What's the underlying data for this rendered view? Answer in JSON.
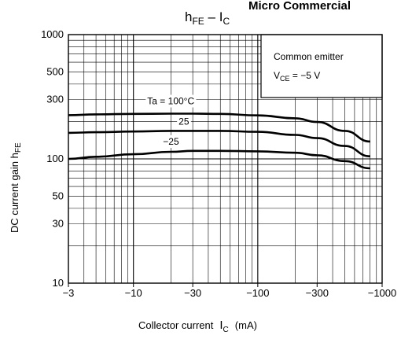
{
  "header": {
    "brand": "Micro Commercial"
  },
  "chart_data": {
    "type": "line",
    "title": {
      "main": "h",
      "main_sub": "FE",
      "sep": " – I",
      "tail_sub": "C"
    },
    "xlabel": {
      "text": "Collector current",
      "var": "I",
      "var_sub": "C",
      "unit": "(mA)"
    },
    "ylabel": {
      "text": "DC current gain",
      "var": "h",
      "var_sub": "FE"
    },
    "x_scale": "log",
    "y_scale": "log",
    "xlim": [
      -3,
      -1000
    ],
    "ylim": [
      10,
      1000
    ],
    "grid": true,
    "x_tick_values": [
      -3,
      -10,
      -30,
      -100,
      -300,
      -1000
    ],
    "x_tick_labels": [
      "−3",
      "−10",
      "−30",
      "−100",
      "−300",
      "−1000"
    ],
    "y_tick_values": [
      10,
      30,
      50,
      100,
      300,
      500,
      1000
    ],
    "y_tick_labels": [
      "10",
      "30",
      "50",
      "100",
      "300",
      "500",
      "1000"
    ],
    "legend_box": {
      "line1": "Common emitter",
      "line2_prefix": "V",
      "line2_sub": "CE",
      "line2_suffix": " = −5 V"
    },
    "series": [
      {
        "name": "Ta = 100°C",
        "x": [
          -3,
          -5,
          -10,
          -20,
          -30,
          -50,
          -100,
          -200,
          -300,
          -500,
          -800
        ],
        "y": [
          225,
          228,
          230,
          231,
          231,
          230,
          224,
          212,
          198,
          168,
          138
        ]
      },
      {
        "name": "25",
        "x": [
          -3,
          -5,
          -10,
          -20,
          -30,
          -50,
          -100,
          -200,
          -300,
          -500,
          -800
        ],
        "y": [
          162,
          164,
          166,
          168,
          168,
          168,
          165,
          156,
          147,
          127,
          105
        ]
      },
      {
        "name": "−25",
        "x": [
          -3,
          -5,
          -10,
          -20,
          -30,
          -50,
          -100,
          -200,
          -300,
          -500,
          -800
        ],
        "y": [
          100,
          104,
          109,
          114,
          116,
          116,
          115,
          112,
          107,
          96,
          84
        ]
      }
    ]
  }
}
